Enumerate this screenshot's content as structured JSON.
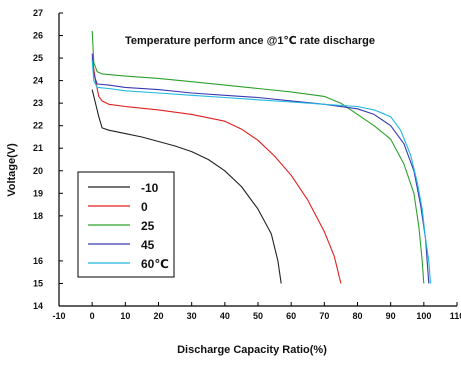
{
  "chart_data": {
    "type": "line",
    "title": "Temperature perform ance @1℃ rate discharge",
    "xlabel": "Discharge Capacity Ratio(%)",
    "ylabel": "Voltage(V)",
    "xlim": [
      -10,
      110
    ],
    "ylim": [
      14,
      27
    ],
    "x_ticks": [
      -10,
      0,
      10,
      20,
      30,
      40,
      50,
      60,
      70,
      80,
      90,
      100,
      110
    ],
    "x_tick_labels": [
      "-10",
      "0",
      "10",
      "20",
      "30",
      "40",
      "50",
      "60",
      "70",
      "80",
      "90",
      "100",
      "110"
    ],
    "y_ticks": [
      14,
      15,
      16,
      18,
      19,
      20,
      21,
      22,
      23,
      24,
      25,
      26,
      27
    ],
    "y_tick_labels": [
      "14",
      "15",
      "16",
      "18",
      "19",
      "20",
      "21",
      "22",
      "23",
      "24",
      "25",
      "26",
      "27"
    ],
    "grid": false,
    "legend_position": "bottom-left",
    "series": [
      {
        "name": "-10",
        "color": "#222222",
        "points": [
          [
            0,
            23.6
          ],
          [
            1,
            23.0
          ],
          [
            2,
            22.4
          ],
          [
            3,
            21.9
          ],
          [
            5,
            21.8
          ],
          [
            10,
            21.65
          ],
          [
            15,
            21.5
          ],
          [
            20,
            21.3
          ],
          [
            25,
            21.1
          ],
          [
            30,
            20.85
          ],
          [
            35,
            20.5
          ],
          [
            40,
            20.0
          ],
          [
            45,
            19.3
          ],
          [
            50,
            18.3
          ],
          [
            54,
            17.2
          ],
          [
            56,
            16.0
          ],
          [
            57,
            15.0
          ]
        ]
      },
      {
        "name": "0",
        "color": "#e02020",
        "points": [
          [
            0,
            25.0
          ],
          [
            1,
            24.0
          ],
          [
            2,
            23.3
          ],
          [
            3,
            23.1
          ],
          [
            5,
            22.95
          ],
          [
            10,
            22.85
          ],
          [
            20,
            22.7
          ],
          [
            30,
            22.5
          ],
          [
            40,
            22.2
          ],
          [
            45,
            21.85
          ],
          [
            50,
            21.35
          ],
          [
            55,
            20.65
          ],
          [
            60,
            19.8
          ],
          [
            65,
            18.7
          ],
          [
            70,
            17.3
          ],
          [
            73,
            16.2
          ],
          [
            75,
            15.0
          ]
        ]
      },
      {
        "name": "25",
        "color": "#2ca02c",
        "points": [
          [
            0,
            26.2
          ],
          [
            0.5,
            24.8
          ],
          [
            1.5,
            24.4
          ],
          [
            3,
            24.3
          ],
          [
            10,
            24.2
          ],
          [
            20,
            24.1
          ],
          [
            30,
            23.95
          ],
          [
            40,
            23.8
          ],
          [
            50,
            23.65
          ],
          [
            60,
            23.5
          ],
          [
            70,
            23.3
          ],
          [
            75,
            23.0
          ],
          [
            80,
            22.5
          ],
          [
            85,
            22.0
          ],
          [
            90,
            21.4
          ],
          [
            94,
            20.3
          ],
          [
            97,
            19.0
          ],
          [
            98.5,
            17.5
          ],
          [
            99.5,
            16.0
          ],
          [
            100,
            15.0
          ]
        ]
      },
      {
        "name": "45",
        "color": "#3a3ab0",
        "points": [
          [
            0,
            25.2
          ],
          [
            0.5,
            24.3
          ],
          [
            1.5,
            23.85
          ],
          [
            5,
            23.8
          ],
          [
            10,
            23.7
          ],
          [
            20,
            23.6
          ],
          [
            30,
            23.45
          ],
          [
            40,
            23.35
          ],
          [
            50,
            23.25
          ],
          [
            60,
            23.1
          ],
          [
            70,
            22.95
          ],
          [
            80,
            22.75
          ],
          [
            85,
            22.5
          ],
          [
            90,
            22.0
          ],
          [
            94,
            21.2
          ],
          [
            97,
            20.0
          ],
          [
            99,
            18.5
          ],
          [
            100.5,
            17.0
          ],
          [
            101.5,
            15.0
          ]
        ]
      },
      {
        "name": "60℃",
        "color": "#20b8e0",
        "points": [
          [
            0,
            24.9
          ],
          [
            0.5,
            24.0
          ],
          [
            1.5,
            23.7
          ],
          [
            5,
            23.65
          ],
          [
            10,
            23.55
          ],
          [
            20,
            23.45
          ],
          [
            30,
            23.35
          ],
          [
            40,
            23.25
          ],
          [
            50,
            23.15
          ],
          [
            60,
            23.05
          ],
          [
            70,
            22.95
          ],
          [
            80,
            22.85
          ],
          [
            85,
            22.7
          ],
          [
            90,
            22.4
          ],
          [
            93,
            21.8
          ],
          [
            96,
            20.7
          ],
          [
            98,
            19.5
          ],
          [
            99.5,
            18.3
          ],
          [
            100.5,
            17.0
          ],
          [
            101.5,
            16.0
          ],
          [
            102,
            15.0
          ]
        ]
      }
    ]
  }
}
